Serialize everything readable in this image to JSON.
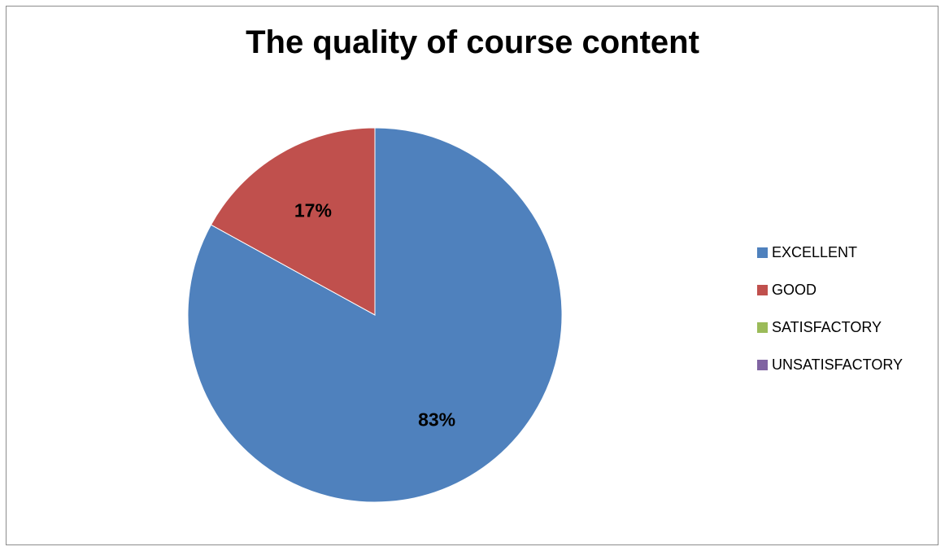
{
  "chart_data": {
    "type": "pie",
    "title": "The quality of course content",
    "categories": [
      "EXCELLENT",
      "GOOD",
      "SATISFACTORY",
      "UNSATISFACTORY"
    ],
    "values": [
      83,
      17,
      0,
      0
    ],
    "data_labels": [
      "83%",
      "17%",
      "",
      ""
    ],
    "colors": [
      "#4f81bd",
      "#c0504d",
      "#9bbb59",
      "#8064a2"
    ],
    "legend_position": "right"
  }
}
